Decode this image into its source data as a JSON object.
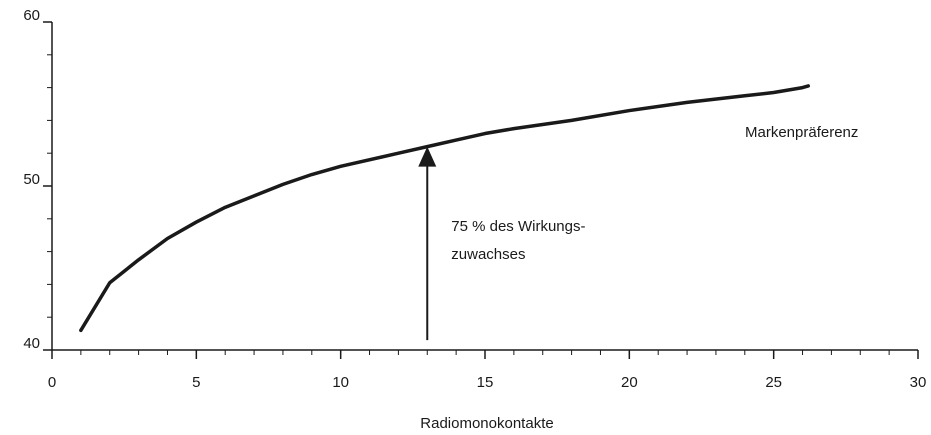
{
  "chart_data": {
    "type": "line",
    "xlabel": "Radiomonokontakte",
    "x": [
      1,
      2,
      3,
      4,
      5,
      6,
      7,
      8,
      9,
      10,
      12,
      13,
      14,
      15,
      16,
      18,
      20,
      22,
      24,
      25,
      26,
      26.2
    ],
    "series": [
      {
        "name": "Markenpräferenz",
        "color": "#1a1a1a",
        "values": [
          41.2,
          44.1,
          45.5,
          46.8,
          47.8,
          48.7,
          49.4,
          50.1,
          50.7,
          51.2,
          52.0,
          52.4,
          52.8,
          53.2,
          53.5,
          54.0,
          54.6,
          55.1,
          55.5,
          55.7,
          56.0,
          56.1
        ]
      }
    ],
    "xlim": [
      0,
      30
    ],
    "xticks": [
      0,
      5,
      10,
      15,
      20,
      25,
      30
    ],
    "ylim": [
      40,
      60
    ],
    "yticks": [
      40,
      50,
      60
    ],
    "annotation": {
      "lines": [
        "75 % des Wirkungs-",
        "zuwachses"
      ],
      "x": 13,
      "y_from": 40.6,
      "y_to": 52.4
    }
  }
}
